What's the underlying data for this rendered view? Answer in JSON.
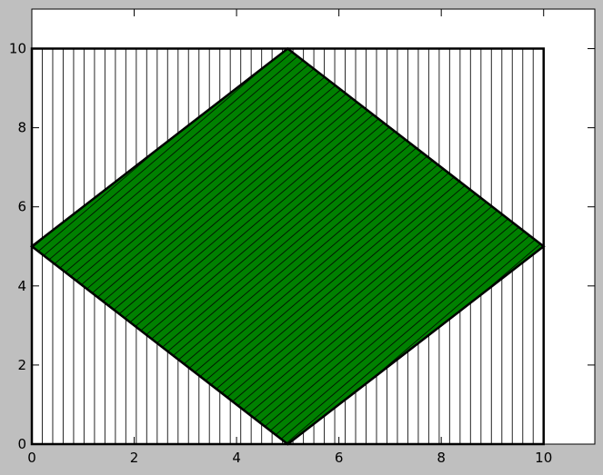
{
  "chart_data": {
    "type": "area",
    "title": "",
    "xlabel": "",
    "ylabel": "",
    "xlim": [
      0,
      11
    ],
    "ylim": [
      0,
      11
    ],
    "x_ticks": [
      0,
      2,
      4,
      6,
      8,
      10
    ],
    "y_ticks": [
      0,
      2,
      4,
      6,
      8,
      10
    ],
    "x_tick_labels": [
      "0",
      "2",
      "4",
      "6",
      "8",
      "10"
    ],
    "y_tick_labels": [
      "0",
      "2",
      "4",
      "6",
      "8",
      "10"
    ],
    "grid": false,
    "series": [
      {
        "type": "polygon",
        "hatch": "vertical",
        "fill": "#ffffff",
        "edge_color": "#000000",
        "points": [
          [
            0,
            0
          ],
          [
            10,
            0
          ],
          [
            10,
            10
          ],
          [
            0,
            10
          ]
        ]
      },
      {
        "type": "polygon",
        "hatch": "diagonal",
        "fill": "#008000",
        "edge_color": "#000000",
        "points": [
          [
            5,
            0
          ],
          [
            10,
            5
          ],
          [
            5,
            10
          ],
          [
            0,
            5
          ]
        ]
      }
    ]
  },
  "colors": {
    "figure_background": "#bfbfbf",
    "axes_background": "#ffffff",
    "diamond_fill": "#008000",
    "edge": "#000000"
  }
}
